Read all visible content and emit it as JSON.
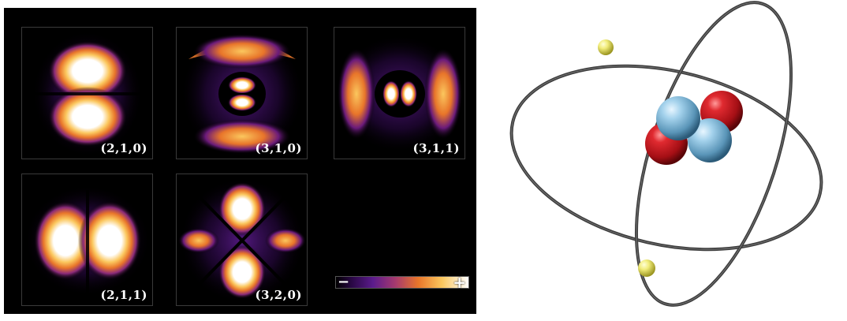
{
  "orbitals": [
    {
      "label": "(2,1,0)",
      "shape": "pz-two-lobe"
    },
    {
      "label": "(3,1,0)",
      "shape": "pz-with-node-ring"
    },
    {
      "label": "(3,1,1)",
      "shape": "px-with-node-ring"
    },
    {
      "label": "(2,1,1)",
      "shape": "px-two-lobe"
    },
    {
      "label": "(3,2,0)",
      "shape": "dz2-cloverleaf"
    }
  ],
  "colorbar": {
    "minus_label": "−",
    "plus_label": "+"
  },
  "colors": {
    "background": "#000000",
    "orbital_low": "#3b0f70",
    "orbital_mid": "#e8752a",
    "orbital_high": "#ffffff",
    "nucleus_blue": "#7fb8d8",
    "nucleus_red": "#c8161e",
    "electron_yellow": "#e8e060",
    "orbit_ring": "#4a4a4a"
  },
  "atom_model": {
    "icon": "helium-atom-icon"
  }
}
